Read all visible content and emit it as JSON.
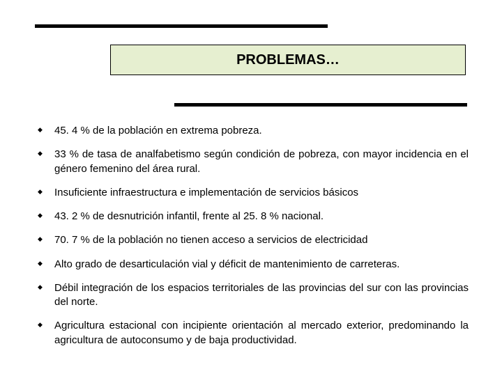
{
  "layout": {
    "background_color": "#ffffff",
    "title_box_bg": "#e6efd0",
    "title_box_border": "#000000",
    "rule_color": "#000000",
    "bullet_color": "#000000",
    "text_color": "#000000",
    "title_fontsize": 20,
    "body_fontsize": 15
  },
  "title": "PROBLEMAS…",
  "bullets": [
    "45. 4 % de la población en extrema pobreza.",
    "33 % de tasa de analfabetismo según condición de pobreza, con mayor incidencia en el género femenino del área rural.",
    "Insuficiente infraestructura e implementación de servicios básicos",
    "43. 2 % de desnutrición infantil, frente al 25. 8 % nacional.",
    "70. 7 % de la población no tienen acceso a servicios de electricidad",
    "Alto grado de desarticulación vial y déficit de mantenimiento de carreteras.",
    "Débil integración de los espacios territoriales de las provincias del sur con las provincias del norte.",
    "Agricultura estacional con incipiente orientación al mercado exterior, predominando la agricultura de autoconsumo y de baja productividad."
  ]
}
